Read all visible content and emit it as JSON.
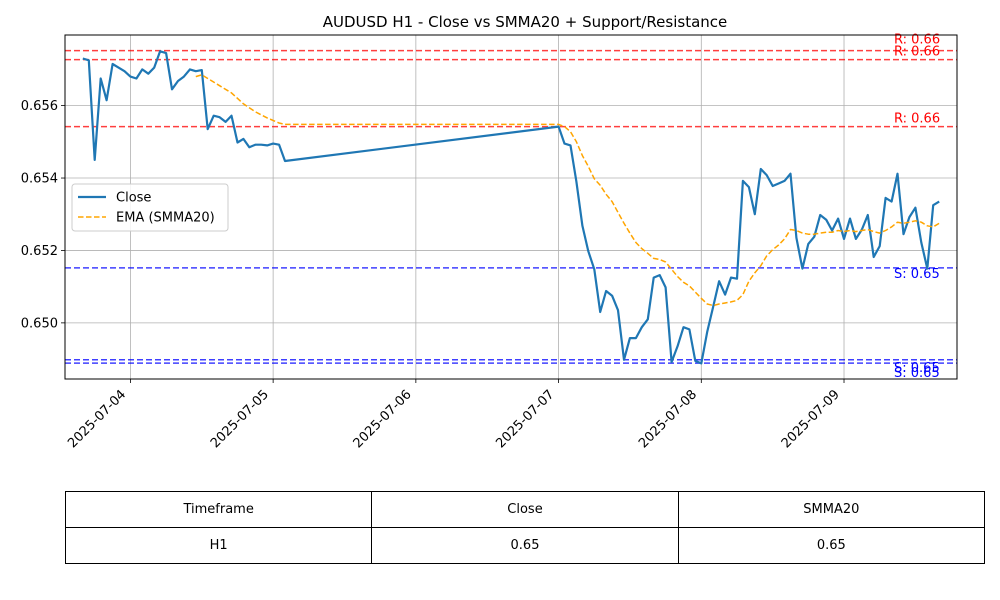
{
  "chart_data": {
    "type": "line",
    "title": "AUDUSD H1 - Close vs SMMA20 + Support/Resistance",
    "xlabel": "",
    "ylabel": "",
    "x_range": [
      "2025-07-03T13:00",
      "2025-07-09T19:00"
    ],
    "ylim": [
      0.64845,
      0.65795
    ],
    "x_ticks": [
      "2025-07-04",
      "2025-07-05",
      "2025-07-06",
      "2025-07-07",
      "2025-07-08",
      "2025-07-09"
    ],
    "y_ticks": [
      0.65,
      0.652,
      0.654,
      0.656
    ],
    "y_tick_labels": [
      "0.650",
      "0.652",
      "0.654",
      "0.656"
    ],
    "grid": true,
    "legend_position": "center-left",
    "series": [
      {
        "name": "Close",
        "color": "#1f77b4",
        "style": "solid",
        "points": [
          [
            "2025-07-03T16:00",
            0.6573
          ],
          [
            "2025-07-03T17:00",
            0.65725
          ],
          [
            "2025-07-03T18:00",
            0.6545
          ],
          [
            "2025-07-03T19:00",
            0.65675
          ],
          [
            "2025-07-03T20:00",
            0.65615
          ],
          [
            "2025-07-03T21:00",
            0.65715
          ],
          [
            "2025-07-03T22:00",
            0.65705
          ],
          [
            "2025-07-03T23:00",
            0.65695
          ],
          [
            "2025-07-04T00:00",
            0.6568
          ],
          [
            "2025-07-04T01:00",
            0.65675
          ],
          [
            "2025-07-04T02:00",
            0.657
          ],
          [
            "2025-07-04T03:00",
            0.65688
          ],
          [
            "2025-07-04T04:00",
            0.65705
          ],
          [
            "2025-07-04T05:00",
            0.6575
          ],
          [
            "2025-07-04T06:00",
            0.65745
          ],
          [
            "2025-07-04T07:00",
            0.65645
          ],
          [
            "2025-07-04T08:00",
            0.65668
          ],
          [
            "2025-07-04T09:00",
            0.6568
          ],
          [
            "2025-07-04T10:00",
            0.657
          ],
          [
            "2025-07-04T11:00",
            0.65695
          ],
          [
            "2025-07-04T12:00",
            0.65698
          ],
          [
            "2025-07-04T13:00",
            0.65535
          ],
          [
            "2025-07-04T14:00",
            0.65572
          ],
          [
            "2025-07-04T15:00",
            0.65568
          ],
          [
            "2025-07-04T16:00",
            0.65555
          ],
          [
            "2025-07-04T17:00",
            0.65572
          ],
          [
            "2025-07-04T18:00",
            0.65498
          ],
          [
            "2025-07-04T19:00",
            0.65508
          ],
          [
            "2025-07-04T20:00",
            0.65485
          ],
          [
            "2025-07-04T21:00",
            0.65492
          ],
          [
            "2025-07-04T22:00",
            0.65492
          ],
          [
            "2025-07-04T23:00",
            0.6549
          ],
          [
            "2025-07-05T00:00",
            0.65495
          ],
          [
            "2025-07-05T01:00",
            0.65492
          ],
          [
            "2025-07-05T02:00",
            0.65447
          ],
          [
            "2025-07-07T00:00",
            0.65542
          ],
          [
            "2025-07-07T01:00",
            0.65495
          ],
          [
            "2025-07-07T02:00",
            0.6549
          ],
          [
            "2025-07-07T03:00",
            0.6539
          ],
          [
            "2025-07-07T04:00",
            0.65268
          ],
          [
            "2025-07-07T05:00",
            0.65198
          ],
          [
            "2025-07-07T06:00",
            0.65148
          ],
          [
            "2025-07-07T07:00",
            0.6503
          ],
          [
            "2025-07-07T08:00",
            0.65088
          ],
          [
            "2025-07-07T09:00",
            0.65075
          ],
          [
            "2025-07-07T10:00",
            0.65035
          ],
          [
            "2025-07-07T11:00",
            0.64898
          ],
          [
            "2025-07-07T12:00",
            0.64958
          ],
          [
            "2025-07-07T13:00",
            0.64958
          ],
          [
            "2025-07-07T14:00",
            0.64988
          ],
          [
            "2025-07-07T15:00",
            0.6501
          ],
          [
            "2025-07-07T16:00",
            0.65125
          ],
          [
            "2025-07-07T17:00",
            0.65132
          ],
          [
            "2025-07-07T18:00",
            0.65098
          ],
          [
            "2025-07-07T19:00",
            0.64892
          ],
          [
            "2025-07-07T20:00",
            0.64935
          ],
          [
            "2025-07-07T21:00",
            0.64988
          ],
          [
            "2025-07-07T22:00",
            0.64982
          ],
          [
            "2025-07-07T23:00",
            0.64895
          ],
          [
            "2025-07-08T00:00",
            0.64888
          ],
          [
            "2025-07-08T01:00",
            0.64975
          ],
          [
            "2025-07-08T02:00",
            0.65045
          ],
          [
            "2025-07-08T03:00",
            0.65115
          ],
          [
            "2025-07-08T04:00",
            0.65078
          ],
          [
            "2025-07-08T05:00",
            0.65125
          ],
          [
            "2025-07-08T06:00",
            0.65122
          ],
          [
            "2025-07-08T07:00",
            0.65392
          ],
          [
            "2025-07-08T08:00",
            0.65375
          ],
          [
            "2025-07-08T09:00",
            0.653
          ],
          [
            "2025-07-08T10:00",
            0.65425
          ],
          [
            "2025-07-08T11:00",
            0.65408
          ],
          [
            "2025-07-08T12:00",
            0.65378
          ],
          [
            "2025-07-08T13:00",
            0.65385
          ],
          [
            "2025-07-08T14:00",
            0.65392
          ],
          [
            "2025-07-08T15:00",
            0.65412
          ],
          [
            "2025-07-08T16:00",
            0.65235
          ],
          [
            "2025-07-08T17:00",
            0.6515
          ],
          [
            "2025-07-08T18:00",
            0.65218
          ],
          [
            "2025-07-08T19:00",
            0.65238
          ],
          [
            "2025-07-08T20:00",
            0.65298
          ],
          [
            "2025-07-08T21:00",
            0.65285
          ],
          [
            "2025-07-08T22:00",
            0.65255
          ],
          [
            "2025-07-08T23:00",
            0.65288
          ],
          [
            "2025-07-09T00:00",
            0.65232
          ],
          [
            "2025-07-09T01:00",
            0.65288
          ],
          [
            "2025-07-09T02:00",
            0.65232
          ],
          [
            "2025-07-09T03:00",
            0.65258
          ],
          [
            "2025-07-09T04:00",
            0.65298
          ],
          [
            "2025-07-09T05:00",
            0.65182
          ],
          [
            "2025-07-09T06:00",
            0.65212
          ],
          [
            "2025-07-09T07:00",
            0.65345
          ],
          [
            "2025-07-09T08:00",
            0.65335
          ],
          [
            "2025-07-09T09:00",
            0.65412
          ],
          [
            "2025-07-09T10:00",
            0.65245
          ],
          [
            "2025-07-09T11:00",
            0.65292
          ],
          [
            "2025-07-09T12:00",
            0.65318
          ],
          [
            "2025-07-09T13:00",
            0.65222
          ],
          [
            "2025-07-09T14:00",
            0.6515
          ],
          [
            "2025-07-09T15:00",
            0.65325
          ],
          [
            "2025-07-09T16:00",
            0.65335
          ]
        ]
      },
      {
        "name": "EMA (SMMA20)",
        "color": "#ffa500",
        "style": "dashed",
        "points": [
          [
            "2025-07-04T11:00",
            0.6568
          ],
          [
            "2025-07-04T12:00",
            0.65685
          ],
          [
            "2025-07-04T15:00",
            0.65655
          ],
          [
            "2025-07-04T17:00",
            0.65635
          ],
          [
            "2025-07-04T19:00",
            0.65605
          ],
          [
            "2025-07-04T21:00",
            0.65583
          ],
          [
            "2025-07-04T23:00",
            0.65566
          ],
          [
            "2025-07-05T01:00",
            0.65552
          ],
          [
            "2025-07-05T02:00",
            0.65548
          ],
          [
            "2025-07-07T00:00",
            0.65548
          ],
          [
            "2025-07-07T01:00",
            0.65542
          ],
          [
            "2025-07-07T02:00",
            0.65528
          ],
          [
            "2025-07-07T03:00",
            0.655
          ],
          [
            "2025-07-07T04:00",
            0.65462
          ],
          [
            "2025-07-07T05:00",
            0.65432
          ],
          [
            "2025-07-07T06:00",
            0.65398
          ],
          [
            "2025-07-07T07:00",
            0.6538
          ],
          [
            "2025-07-07T08:00",
            0.65355
          ],
          [
            "2025-07-07T09:00",
            0.65335
          ],
          [
            "2025-07-07T10:00",
            0.65305
          ],
          [
            "2025-07-07T11:00",
            0.65275
          ],
          [
            "2025-07-07T12:00",
            0.65248
          ],
          [
            "2025-07-07T13:00",
            0.65222
          ],
          [
            "2025-07-07T14:00",
            0.65205
          ],
          [
            "2025-07-07T15:00",
            0.65192
          ],
          [
            "2025-07-07T16:00",
            0.65178
          ],
          [
            "2025-07-07T17:00",
            0.65175
          ],
          [
            "2025-07-07T18:00",
            0.65168
          ],
          [
            "2025-07-07T19:00",
            0.65148
          ],
          [
            "2025-07-07T20:00",
            0.65128
          ],
          [
            "2025-07-07T21:00",
            0.65112
          ],
          [
            "2025-07-07T22:00",
            0.65102
          ],
          [
            "2025-07-07T23:00",
            0.65085
          ],
          [
            "2025-07-08T00:00",
            0.65068
          ],
          [
            "2025-07-08T01:00",
            0.65052
          ],
          [
            "2025-07-08T02:00",
            0.65048
          ],
          [
            "2025-07-08T03:00",
            0.65052
          ],
          [
            "2025-07-08T04:00",
            0.65055
          ],
          [
            "2025-07-08T05:00",
            0.65058
          ],
          [
            "2025-07-08T06:00",
            0.65062
          ],
          [
            "2025-07-08T07:00",
            0.65078
          ],
          [
            "2025-07-08T08:00",
            0.65115
          ],
          [
            "2025-07-08T09:00",
            0.65138
          ],
          [
            "2025-07-08T10:00",
            0.65158
          ],
          [
            "2025-07-08T11:00",
            0.65185
          ],
          [
            "2025-07-08T12:00",
            0.65202
          ],
          [
            "2025-07-08T13:00",
            0.65215
          ],
          [
            "2025-07-08T14:00",
            0.65232
          ],
          [
            "2025-07-08T15:00",
            0.65258
          ],
          [
            "2025-07-08T16:00",
            0.65255
          ],
          [
            "2025-07-08T17:00",
            0.65248
          ],
          [
            "2025-07-08T18:00",
            0.65245
          ],
          [
            "2025-07-08T19:00",
            0.65245
          ],
          [
            "2025-07-08T20:00",
            0.65248
          ],
          [
            "2025-07-08T21:00",
            0.6525
          ],
          [
            "2025-07-08T22:00",
            0.6525
          ],
          [
            "2025-07-08T23:00",
            0.65255
          ],
          [
            "2025-07-09T00:00",
            0.65252
          ],
          [
            "2025-07-09T01:00",
            0.65255
          ],
          [
            "2025-07-09T02:00",
            0.65252
          ],
          [
            "2025-07-09T03:00",
            0.65255
          ],
          [
            "2025-07-09T04:00",
            0.65258
          ],
          [
            "2025-07-09T05:00",
            0.65252
          ],
          [
            "2025-07-09T06:00",
            0.65248
          ],
          [
            "2025-07-09T07:00",
            0.65255
          ],
          [
            "2025-07-09T08:00",
            0.65265
          ],
          [
            "2025-07-09T09:00",
            0.65278
          ],
          [
            "2025-07-09T10:00",
            0.65275
          ],
          [
            "2025-07-09T11:00",
            0.65278
          ],
          [
            "2025-07-09T12:00",
            0.65282
          ],
          [
            "2025-07-09T13:00",
            0.65278
          ],
          [
            "2025-07-09T14:00",
            0.65268
          ],
          [
            "2025-07-09T15:00",
            0.65265
          ],
          [
            "2025-07-09T16:00",
            0.65275
          ]
        ]
      }
    ],
    "resistance_levels": [
      {
        "value": 0.65752,
        "label": "R: 0.66",
        "color": "#ff0000"
      },
      {
        "value": 0.65727,
        "label": "R: 0.66",
        "color": "#ff0000"
      },
      {
        "value": 0.65542,
        "label": "R: 0.66",
        "color": "#ff0000"
      }
    ],
    "support_levels": [
      {
        "value": 0.65152,
        "label": "S: 0.65",
        "color": "#0000ff"
      },
      {
        "value": 0.64898,
        "label": "S: 0.65",
        "color": "#0000ff"
      },
      {
        "value": 0.64889,
        "label": "S: 0.65",
        "color": "#0000ff"
      }
    ]
  },
  "table": {
    "headers": [
      "Timeframe",
      "Close",
      "SMMA20"
    ],
    "rows": [
      [
        "H1",
        "0.65",
        "0.65"
      ]
    ]
  }
}
